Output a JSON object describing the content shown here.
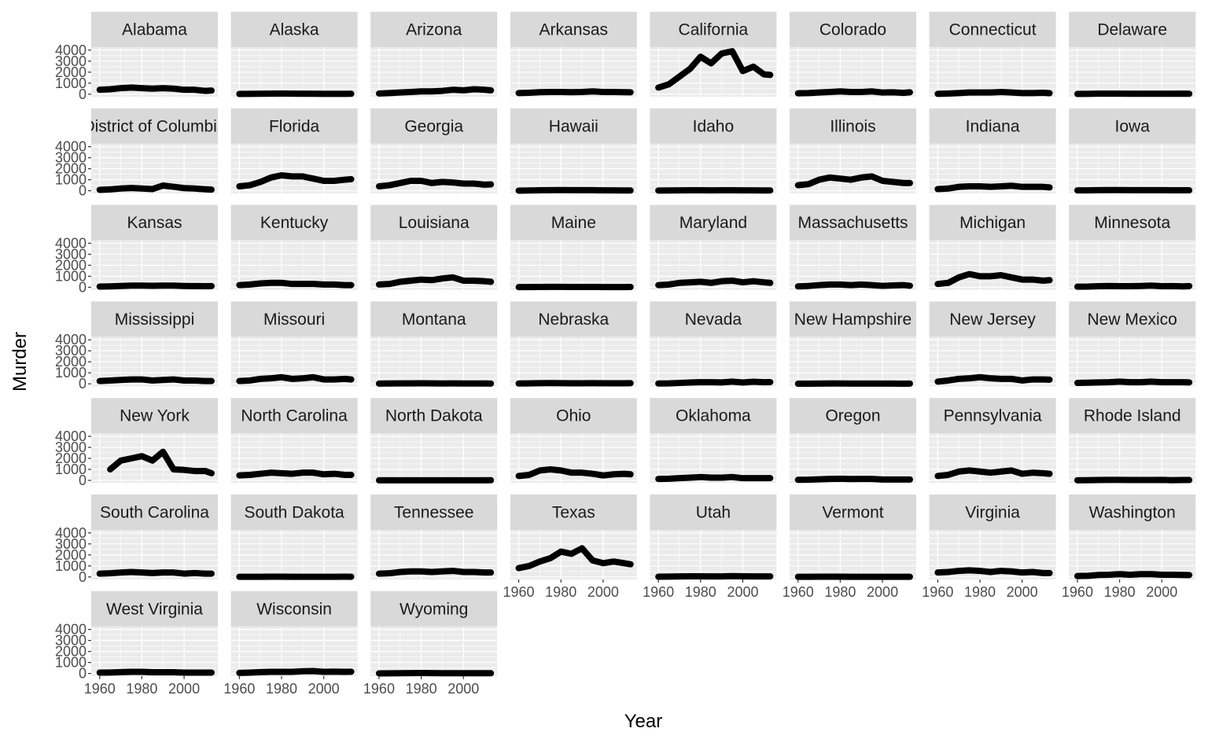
{
  "chart_data": {
    "type": "line",
    "x_label": "Year",
    "y_label": "Murder",
    "x": [
      1960,
      1965,
      1970,
      1975,
      1980,
      1985,
      1990,
      1995,
      2000,
      2005,
      2010,
      2013
    ],
    "xlim": [
      1956,
      2016
    ],
    "xticks": [
      1960,
      1980,
      2000
    ],
    "ylim": [
      -230,
      4270
    ],
    "yticks": [
      0,
      1000,
      2000,
      3000,
      4000
    ],
    "grid": true,
    "color": "#000000",
    "series": [
      {
        "name": "Alabama",
        "values": [
          400,
          450,
          550,
          600,
          550,
          500,
          550,
          500,
          400,
          400,
          300,
          330
        ]
      },
      {
        "name": "Alaska",
        "values": [
          20,
          30,
          40,
          50,
          60,
          50,
          40,
          40,
          30,
          30,
          30,
          35
        ]
      },
      {
        "name": "Arizona",
        "values": [
          60,
          100,
          150,
          200,
          250,
          250,
          300,
          400,
          350,
          450,
          400,
          350
        ]
      },
      {
        "name": "Arkansas",
        "values": [
          100,
          130,
          180,
          200,
          200,
          180,
          200,
          250,
          200,
          200,
          180,
          170
        ]
      },
      {
        "name": "California",
        "values": [
          600,
          900,
          1600,
          2300,
          3400,
          2800,
          3700,
          3900,
          2100,
          2500,
          1800,
          1750
        ]
      },
      {
        "name": "Colorado",
        "values": [
          80,
          100,
          150,
          200,
          250,
          200,
          200,
          250,
          150,
          170,
          120,
          170
        ]
      },
      {
        "name": "Connecticut",
        "values": [
          30,
          60,
          100,
          150,
          150,
          150,
          200,
          150,
          100,
          100,
          130,
          90
        ]
      },
      {
        "name": "Delaware",
        "values": [
          20,
          30,
          50,
          50,
          50,
          40,
          40,
          40,
          40,
          40,
          50,
          40
        ]
      },
      {
        "name": "District of Columbia",
        "values": [
          80,
          120,
          200,
          250,
          200,
          150,
          470,
          360,
          240,
          200,
          130,
          100
        ]
      },
      {
        "name": "Florida",
        "values": [
          400,
          500,
          800,
          1200,
          1400,
          1300,
          1300,
          1100,
          900,
          900,
          1000,
          1050
        ]
      },
      {
        "name": "Georgia",
        "values": [
          400,
          500,
          700,
          900,
          900,
          700,
          800,
          750,
          650,
          650,
          550,
          580
        ]
      },
      {
        "name": "Hawaii",
        "values": [
          10,
          20,
          40,
          50,
          60,
          50,
          50,
          50,
          30,
          30,
          25,
          20
        ]
      },
      {
        "name": "Idaho",
        "values": [
          15,
          20,
          30,
          40,
          40,
          30,
          40,
          40,
          30,
          30,
          25,
          25
        ]
      },
      {
        "name": "Illinois",
        "values": [
          500,
          600,
          1000,
          1200,
          1100,
          1000,
          1200,
          1300,
          900,
          800,
          700,
          700
        ]
      },
      {
        "name": "Indiana",
        "values": [
          150,
          200,
          350,
          400,
          400,
          350,
          400,
          450,
          350,
          350,
          350,
          300
        ]
      },
      {
        "name": "Iowa",
        "values": [
          30,
          30,
          50,
          60,
          60,
          50,
          50,
          50,
          50,
          40,
          40,
          40
        ]
      },
      {
        "name": "Kansas",
        "values": [
          60,
          80,
          120,
          150,
          150,
          130,
          150,
          150,
          120,
          110,
          100,
          110
        ]
      },
      {
        "name": "Kentucky",
        "values": [
          200,
          250,
          350,
          400,
          400,
          300,
          300,
          300,
          250,
          250,
          200,
          200
        ]
      },
      {
        "name": "Louisiana",
        "values": [
          250,
          300,
          500,
          600,
          700,
          650,
          800,
          900,
          600,
          600,
          550,
          500
        ]
      },
      {
        "name": "Maine",
        "values": [
          15,
          20,
          30,
          40,
          40,
          30,
          30,
          30,
          20,
          20,
          20,
          25
        ]
      },
      {
        "name": "Maryland",
        "values": [
          200,
          250,
          400,
          450,
          500,
          400,
          550,
          600,
          450,
          550,
          450,
          400
        ]
      },
      {
        "name": "Massachusetts",
        "values": [
          80,
          120,
          200,
          250,
          250,
          200,
          250,
          200,
          130,
          170,
          200,
          140
        ]
      },
      {
        "name": "Michigan",
        "values": [
          300,
          400,
          900,
          1200,
          1000,
          1000,
          1100,
          900,
          700,
          700,
          600,
          650
        ]
      },
      {
        "name": "Minnesota",
        "values": [
          50,
          60,
          100,
          120,
          100,
          100,
          120,
          150,
          100,
          110,
          80,
          110
        ]
      },
      {
        "name": "Mississippi",
        "values": [
          250,
          300,
          350,
          400,
          400,
          300,
          350,
          400,
          300,
          300,
          250,
          250
        ]
      },
      {
        "name": "Missouri",
        "values": [
          250,
          300,
          450,
          500,
          600,
          450,
          500,
          600,
          400,
          400,
          450,
          400
        ]
      },
      {
        "name": "Montana",
        "values": [
          20,
          30,
          40,
          40,
          50,
          40,
          30,
          40,
          30,
          30,
          30,
          25
        ]
      },
      {
        "name": "Nebraska",
        "values": [
          30,
          40,
          60,
          70,
          60,
          50,
          50,
          60,
          50,
          50,
          50,
          60
        ]
      },
      {
        "name": "Nevada",
        "values": [
          30,
          40,
          80,
          120,
          150,
          150,
          130,
          200,
          120,
          190,
          150,
          160
        ]
      },
      {
        "name": "New Hampshire",
        "values": [
          10,
          10,
          20,
          30,
          30,
          20,
          20,
          20,
          20,
          20,
          15,
          20
        ]
      },
      {
        "name": "New Jersey",
        "values": [
          200,
          300,
          450,
          500,
          600,
          500,
          450,
          450,
          300,
          400,
          400,
          380
        ]
      },
      {
        "name": "New Mexico",
        "values": [
          80,
          100,
          130,
          150,
          200,
          150,
          150,
          200,
          150,
          150,
          150,
          130
        ]
      },
      {
        "name": "New York",
        "values": [
          null,
          1000,
          1800,
          2000,
          2200,
          1800,
          2600,
          1000,
          950,
          850,
          850,
          650
        ]
      },
      {
        "name": "North Carolina",
        "values": [
          450,
          500,
          600,
          700,
          650,
          600,
          700,
          700,
          550,
          600,
          500,
          500
        ]
      },
      {
        "name": "North Dakota",
        "values": [
          5,
          5,
          10,
          10,
          10,
          10,
          10,
          10,
          10,
          10,
          10,
          15
        ]
      },
      {
        "name": "Ohio",
        "values": [
          400,
          500,
          900,
          1000,
          900,
          700,
          700,
          600,
          450,
          550,
          600,
          550
        ]
      },
      {
        "name": "Oklahoma",
        "values": [
          130,
          150,
          200,
          250,
          300,
          250,
          250,
          300,
          200,
          200,
          200,
          200
        ]
      },
      {
        "name": "Oregon",
        "values": [
          50,
          60,
          100,
          130,
          150,
          120,
          130,
          130,
          80,
          80,
          80,
          80
        ]
      },
      {
        "name": "Pennsylvania",
        "values": [
          400,
          500,
          800,
          900,
          800,
          700,
          800,
          900,
          600,
          700,
          650,
          600
        ]
      },
      {
        "name": "Rhode Island",
        "values": [
          10,
          15,
          30,
          40,
          40,
          30,
          30,
          30,
          40,
          20,
          30,
          30
        ]
      },
      {
        "name": "South Carolina",
        "values": [
          300,
          330,
          400,
          450,
          400,
          350,
          400,
          400,
          300,
          350,
          300,
          300
        ]
      },
      {
        "name": "South Dakota",
        "values": [
          10,
          10,
          15,
          20,
          20,
          15,
          15,
          15,
          10,
          15,
          20,
          15
        ]
      },
      {
        "name": "Tennessee",
        "values": [
          300,
          330,
          450,
          500,
          500,
          450,
          500,
          550,
          450,
          450,
          400,
          400
        ]
      },
      {
        "name": "Texas",
        "values": [
          800,
          1000,
          1400,
          1700,
          2300,
          2100,
          2600,
          1500,
          1250,
          1400,
          1250,
          1150
        ]
      },
      {
        "name": "Utah",
        "values": [
          20,
          30,
          50,
          60,
          60,
          50,
          50,
          70,
          60,
          50,
          50,
          50
        ]
      },
      {
        "name": "Vermont",
        "values": [
          10,
          10,
          20,
          20,
          20,
          15,
          15,
          10,
          10,
          10,
          10,
          10
        ]
      },
      {
        "name": "Virginia",
        "values": [
          400,
          450,
          550,
          600,
          550,
          450,
          550,
          500,
          400,
          450,
          350,
          350
        ]
      },
      {
        "name": "Washington",
        "values": [
          80,
          100,
          180,
          200,
          250,
          200,
          250,
          250,
          200,
          200,
          180,
          170
        ]
      },
      {
        "name": "West Virginia",
        "values": [
          80,
          90,
          120,
          150,
          150,
          110,
          110,
          110,
          80,
          80,
          80,
          80
        ]
      },
      {
        "name": "Wisconsin",
        "values": [
          50,
          80,
          120,
          150,
          150,
          150,
          200,
          220,
          150,
          170,
          150,
          160
        ]
      },
      {
        "name": "Wyoming",
        "values": [
          10,
          15,
          20,
          30,
          40,
          30,
          20,
          20,
          20,
          20,
          20,
          20
        ]
      }
    ]
  }
}
